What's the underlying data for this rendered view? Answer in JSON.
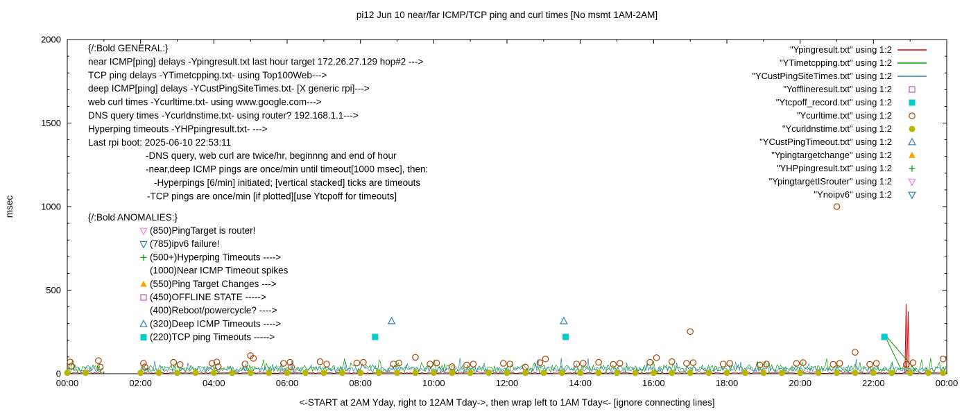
{
  "window": {
    "title": "pi12 Jun 10  near/far ICMP/TCP ping and curl times [No msmt 1AM-2AM]"
  },
  "chart_data": {
    "type": "line",
    "title": "pi12 Jun 10  near/far ICMP/TCP ping and curl times [No msmt 1AM-2AM]",
    "xlabel": "<-START at 2AM Yday, right to 12AM Tday->, then wrap left to 1AM Tday<- [ignore connecting lines]",
    "ylabel": "msec",
    "xlim": [
      0,
      24
    ],
    "ylim": [
      0,
      2000
    ],
    "grid": false,
    "legend_position": "top-right-inside",
    "x_tick_labels": [
      "00:00",
      "02:00",
      "04:00",
      "06:00",
      "08:00",
      "10:00",
      "12:00",
      "14:00",
      "16:00",
      "18:00",
      "20:00",
      "22:00",
      "00:00"
    ],
    "y_tick_values": [
      0,
      500,
      1000,
      1500,
      2000
    ],
    "measurement_gap_hours": [
      1,
      2
    ],
    "legend": [
      {
        "label": "\"Ypingresult.txt\" using 1:2",
        "sample": "line",
        "color": "#dd0000"
      },
      {
        "label": "\"YTimetcpping.txt\" using 1:2",
        "sample": "line",
        "color": "#00a000"
      },
      {
        "label": "\"YCustPingSiteTimes.txt\" using 1:2",
        "sample": "line",
        "color": "#2a7fb8"
      },
      {
        "label": "\"Yofflineresult.txt\" using 1:2",
        "sample": "square-open",
        "color": "#c04fc0"
      },
      {
        "label": "\"Ytcpoff_record.txt\" using 1:2",
        "sample": "square-filled",
        "color": "#00cccc"
      },
      {
        "label": "\"Ycurltime.txt\" using 1:2",
        "sample": "circle-open",
        "color": "#aa4400"
      },
      {
        "label": "\"Ycurldnstime.txt\" using 1:2",
        "sample": "circle-filled",
        "color": "#b8b800"
      },
      {
        "label": "\"YCustPingTimeout.txt\" using 1:2",
        "sample": "triangle-up-open",
        "color": "#2a7fb8"
      },
      {
        "label": "\"Ypingtargetchange\" using 1:2",
        "sample": "triangle-up-filled",
        "color": "#ffa500"
      },
      {
        "label": "\"YHPpingresult.txt\" using 1:2",
        "sample": "plus",
        "color": "#00a000"
      },
      {
        "label": "\"YpingtargetISrouter\" using 1:2",
        "sample": "triangle-down-open",
        "color": "#ee82ee"
      },
      {
        "label": "\"Ynoipv6\" using 1:2",
        "sample": "triangle-down-open",
        "color": "#2a7fb8"
      }
    ],
    "series": [
      {
        "name": "Ypingresult.txt",
        "style": "line",
        "color": "#dd0000",
        "noise": {
          "base": 2,
          "amp": 7,
          "spike": 14,
          "step": 0.04,
          "seed": 11
        },
        "overlays": [
          [
            [
              22.86,
              4
            ],
            [
              22.89,
              418
            ],
            [
              22.91,
              12
            ],
            [
              22.95,
              372
            ],
            [
              22.97,
              4
            ]
          ]
        ]
      },
      {
        "name": "YTimetcpping.txt",
        "style": "line",
        "color": "#00a000",
        "noise": {
          "base": 8,
          "amp": 45,
          "spike": 55,
          "step": 0.035,
          "seed": 23
        },
        "overlays": [
          [
            [
              22.36,
              222
            ],
            [
              23.15,
              20
            ]
          ],
          [
            [
              22.36,
              205
            ],
            [
              22.75,
              28
            ]
          ]
        ]
      },
      {
        "name": "YCustPingSiteTimes.txt",
        "style": "line",
        "color": "#2a7fb8",
        "noise": {
          "base": 10,
          "amp": 32,
          "spike": 60,
          "step": 0.035,
          "seed": 37
        },
        "overlays": []
      },
      {
        "name": "Yofflineresult.txt",
        "style": "points",
        "marker": "square-open",
        "color": "#c04fc0",
        "points": []
      },
      {
        "name": "Ytcpoff_record.txt",
        "style": "points",
        "marker": "square-filled",
        "color": "#00cccc",
        "points": [
          [
            8.4,
            220
          ],
          [
            13.6,
            220
          ],
          [
            22.3,
            220
          ]
        ]
      },
      {
        "name": "Ycurltime.txt",
        "style": "points",
        "marker": "circle-open",
        "color": "#aa4400",
        "points": [
          [
            0.08,
            70
          ],
          [
            0.12,
            45
          ],
          [
            0.85,
            78
          ],
          [
            0.9,
            40
          ],
          [
            2.08,
            62
          ],
          [
            2.12,
            40
          ],
          [
            2.9,
            68
          ],
          [
            3.08,
            55
          ],
          [
            3.95,
            62
          ],
          [
            4.08,
            70
          ],
          [
            4.12,
            42
          ],
          [
            4.85,
            58
          ],
          [
            5.0,
            108
          ],
          [
            5.08,
            92
          ],
          [
            5.9,
            62
          ],
          [
            6.08,
            68
          ],
          [
            6.12,
            40
          ],
          [
            6.9,
            72
          ],
          [
            7.08,
            58
          ],
          [
            7.9,
            64
          ],
          [
            8.08,
            68
          ],
          [
            8.9,
            58
          ],
          [
            9.05,
            64
          ],
          [
            9.5,
            98
          ],
          [
            9.9,
            58
          ],
          [
            10.08,
            64
          ],
          [
            10.5,
            42
          ],
          [
            10.9,
            52
          ],
          [
            11.08,
            58
          ],
          [
            11.9,
            62
          ],
          [
            12.08,
            58
          ],
          [
            12.5,
            40
          ],
          [
            12.9,
            66
          ],
          [
            13.05,
            88
          ],
          [
            13.9,
            58
          ],
          [
            14.08,
            62
          ],
          [
            14.5,
            68
          ],
          [
            14.9,
            56
          ],
          [
            15.08,
            62
          ],
          [
            15.9,
            68
          ],
          [
            16.08,
            96
          ],
          [
            16.5,
            72
          ],
          [
            16.9,
            62
          ],
          [
            17.0,
            252
          ],
          [
            17.08,
            66
          ],
          [
            17.9,
            58
          ],
          [
            18.08,
            62
          ],
          [
            18.9,
            52
          ],
          [
            19.08,
            58
          ],
          [
            19.9,
            62
          ],
          [
            20.08,
            66
          ],
          [
            20.9,
            56
          ],
          [
            21.0,
            1000
          ],
          [
            21.08,
            62
          ],
          [
            21.5,
            128
          ],
          [
            21.9,
            56
          ],
          [
            22.08,
            62
          ],
          [
            22.9,
            56
          ],
          [
            23.08,
            66
          ],
          [
            23.9,
            88
          ]
        ]
      },
      {
        "name": "Ycurldnstime.txt",
        "style": "points",
        "marker": "circle-filled",
        "color": "#b8b800",
        "points": [
          [
            0,
            5
          ],
          [
            0.5,
            5
          ],
          [
            2,
            5
          ],
          [
            2.5,
            5
          ],
          [
            3,
            5
          ],
          [
            3.5,
            5
          ],
          [
            4,
            5
          ],
          [
            4.5,
            5
          ],
          [
            5,
            5
          ],
          [
            5.5,
            5
          ],
          [
            6,
            5
          ],
          [
            6.5,
            5
          ],
          [
            7,
            5
          ],
          [
            7.5,
            5
          ],
          [
            8,
            5
          ],
          [
            8.5,
            5
          ],
          [
            9,
            5
          ],
          [
            9.5,
            5
          ],
          [
            10,
            5
          ],
          [
            10.5,
            5
          ],
          [
            11,
            5
          ],
          [
            11.5,
            5
          ],
          [
            12,
            5
          ],
          [
            12.5,
            5
          ],
          [
            13,
            5
          ],
          [
            13.5,
            5
          ],
          [
            14,
            5
          ],
          [
            14.5,
            5
          ],
          [
            15,
            5
          ],
          [
            15.5,
            5
          ],
          [
            16,
            5
          ],
          [
            16.5,
            5
          ],
          [
            17,
            5
          ],
          [
            17.5,
            5
          ],
          [
            18,
            5
          ],
          [
            18.5,
            5
          ],
          [
            19,
            5
          ],
          [
            19.5,
            5
          ],
          [
            20,
            5
          ],
          [
            20.5,
            5
          ],
          [
            21,
            5
          ],
          [
            21.5,
            5
          ],
          [
            22,
            5
          ],
          [
            22.5,
            5
          ],
          [
            23,
            5
          ],
          [
            23.5,
            5
          ],
          [
            23.9,
            5
          ]
        ]
      },
      {
        "name": "YCustPingTimeout.txt",
        "style": "points",
        "marker": "triangle-up-open",
        "color": "#2a7fb8",
        "points": [
          [
            8.85,
            315
          ],
          [
            13.55,
            315
          ]
        ]
      },
      {
        "name": "Ypingtargetchange",
        "style": "points",
        "marker": "triangle-up-filled",
        "color": "#ffa500",
        "points": []
      },
      {
        "name": "YHPpingresult.txt",
        "style": "points",
        "marker": "plus",
        "color": "#00a000",
        "points": []
      },
      {
        "name": "YpingtargetISrouter",
        "style": "points",
        "marker": "triangle-down-open",
        "color": "#ee82ee",
        "points": []
      },
      {
        "name": "Ynoipv6",
        "style": "points",
        "marker": "triangle-down-open",
        "color": "#2a7fb8",
        "points": []
      }
    ],
    "annotations": {
      "general": [
        {
          "t": "{/:Bold GENERAL:}",
          "x": 127
        },
        {
          "t": "near ICMP[ping] delays -Ypingresult.txt last hour target 172.26.27.129 hop#2 --->",
          "x": 127
        },
        {
          "t": "TCP ping delays -YTimetcpping.txt- using Top100Web--->",
          "x": 127
        },
        {
          "t": "deep ICMP[ping] delays -YCustPingSiteTimes.txt- [X generic rpi]--->",
          "x": 127
        },
        {
          "t": "web curl times -Ycurltime.txt- using www.google.com--->",
          "x": 127
        },
        {
          "t": "DNS query times -Ycurldnstime.txt- using router? 192.168.1.1--->",
          "x": 127
        },
        {
          "t": "Hyperping timeouts -YHPpingresult.txt- --->",
          "x": 127
        },
        {
          "t": "Last rpi boot: 2025-06-10 22:53:11",
          "x": 127
        },
        {
          "t": "-DNS query, web curl are twice/hr, beginnng and end of hour",
          "x": 210
        },
        {
          "t": "-near,deep ICMP pings are once/min until timeout[1000 msec], then:",
          "x": 210
        },
        {
          "t": "-Hyperpings [6/min] initiated; [vertical stacked] ticks are timeouts",
          "x": 222
        },
        {
          "t": "-TCP pings are once/min [if plotted][use Ytcpoff for timeouts]",
          "x": 212
        }
      ],
      "anomalies_header": {
        "t": "{/:Bold ANOMALIES:}",
        "x": 127
      },
      "anomalies": [
        {
          "marker": "triangle-down-open",
          "color": "#ee82ee",
          "t": "(850)PingTarget is router!"
        },
        {
          "marker": "triangle-down-open",
          "color": "#2a7fb8",
          "t": "(785)ipv6 failure!"
        },
        {
          "marker": "plus",
          "color": "#00a000",
          "t": "(500+)Hyperping Timeouts ---->"
        },
        {
          "marker": null,
          "color": null,
          "t": "(1000)Near ICMP Timeout spikes"
        },
        {
          "marker": "triangle-up-filled",
          "color": "#ffa500",
          "t": "(550)Ping Target Changes --->"
        },
        {
          "marker": "square-open",
          "color": "#c04fc0",
          "t": "(450)OFFLINE STATE ----->"
        },
        {
          "marker": null,
          "color": null,
          "t": "(400)Reboot/powercycle? ---->"
        },
        {
          "marker": "triangle-up-open",
          "color": "#2a7fb8",
          "t": "(320)Deep ICMP Timeouts ---->"
        },
        {
          "marker": "square-filled",
          "color": "#00cccc",
          "t": "(220)TCP ping Timeouts ----->"
        }
      ]
    }
  }
}
